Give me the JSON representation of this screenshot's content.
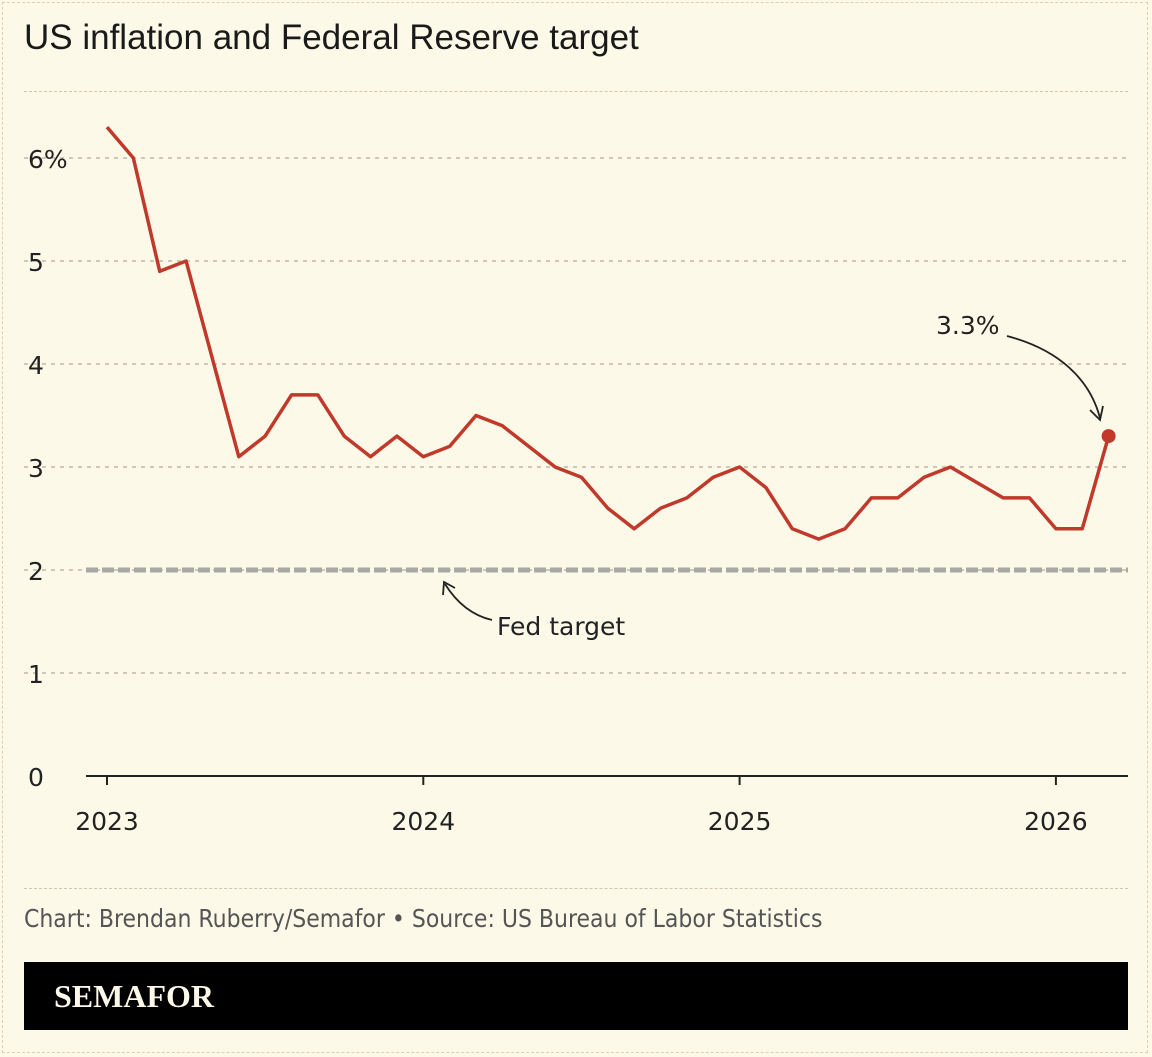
{
  "title": "US inflation and Federal Reserve target",
  "source": "Chart: Brendan Ruberry/Semafor • Source: US Bureau of Labor Statistics",
  "brand": "SEMAFOR",
  "colors": {
    "background": "#fcf9e8",
    "line": "#c0392b",
    "target": "#a9a9a3"
  },
  "chart_data": {
    "type": "line",
    "title": "US inflation and Federal Reserve target",
    "xlabel": "",
    "ylabel": "",
    "ylim": [
      0,
      6.5
    ],
    "y_ticks": [
      {
        "v": 0,
        "label": "0"
      },
      {
        "v": 1,
        "label": "1"
      },
      {
        "v": 2,
        "label": "2"
      },
      {
        "v": 3,
        "label": "3"
      },
      {
        "v": 4,
        "label": "4"
      },
      {
        "v": 5,
        "label": "5"
      },
      {
        "v": 6,
        "label": "6%"
      }
    ],
    "x_ticks": [
      {
        "v": 2023,
        "label": "2023"
      },
      {
        "v": 2024,
        "label": "2024"
      },
      {
        "v": 2025,
        "label": "2025"
      },
      {
        "v": 2026,
        "label": "2026"
      }
    ],
    "grid": true,
    "series": [
      {
        "x": [
          "2023-01",
          "2023-02",
          "2023-03",
          "2023-04",
          "2023-05",
          "2023-06",
          "2023-07",
          "2023-08",
          "2023-09",
          "2023-10",
          "2023-11",
          "2023-12",
          "2024-01",
          "2024-02",
          "2024-03",
          "2024-04",
          "2024-05",
          "2024-06",
          "2024-07",
          "2024-08",
          "2024-09",
          "2024-10",
          "2024-11",
          "2024-12",
          "2025-01",
          "2025-02",
          "2025-03",
          "2025-04",
          "2025-05",
          "2025-06",
          "2025-07",
          "2025-08",
          "2025-09",
          "2025-10",
          "2025-11",
          "2025-12",
          "2026-01",
          "2026-02",
          "2026-03"
        ],
        "values": [
          6.3,
          6.0,
          4.9,
          5.0,
          4.05,
          3.1,
          3.3,
          3.7,
          3.7,
          3.3,
          3.1,
          3.3,
          3.1,
          3.2,
          3.5,
          3.4,
          3.2,
          3.0,
          2.9,
          2.6,
          2.4,
          2.6,
          2.7,
          2.9,
          3.0,
          2.8,
          2.4,
          2.3,
          2.4,
          2.7,
          2.7,
          2.9,
          3.0,
          2.85,
          2.7,
          2.7,
          2.4,
          2.4,
          3.3
        ]
      }
    ],
    "reference_line": {
      "value": 2,
      "label": "Fed target"
    },
    "annotations": [
      {
        "label": "3.3%",
        "x": "2026-03",
        "y": 3.3
      }
    ]
  }
}
